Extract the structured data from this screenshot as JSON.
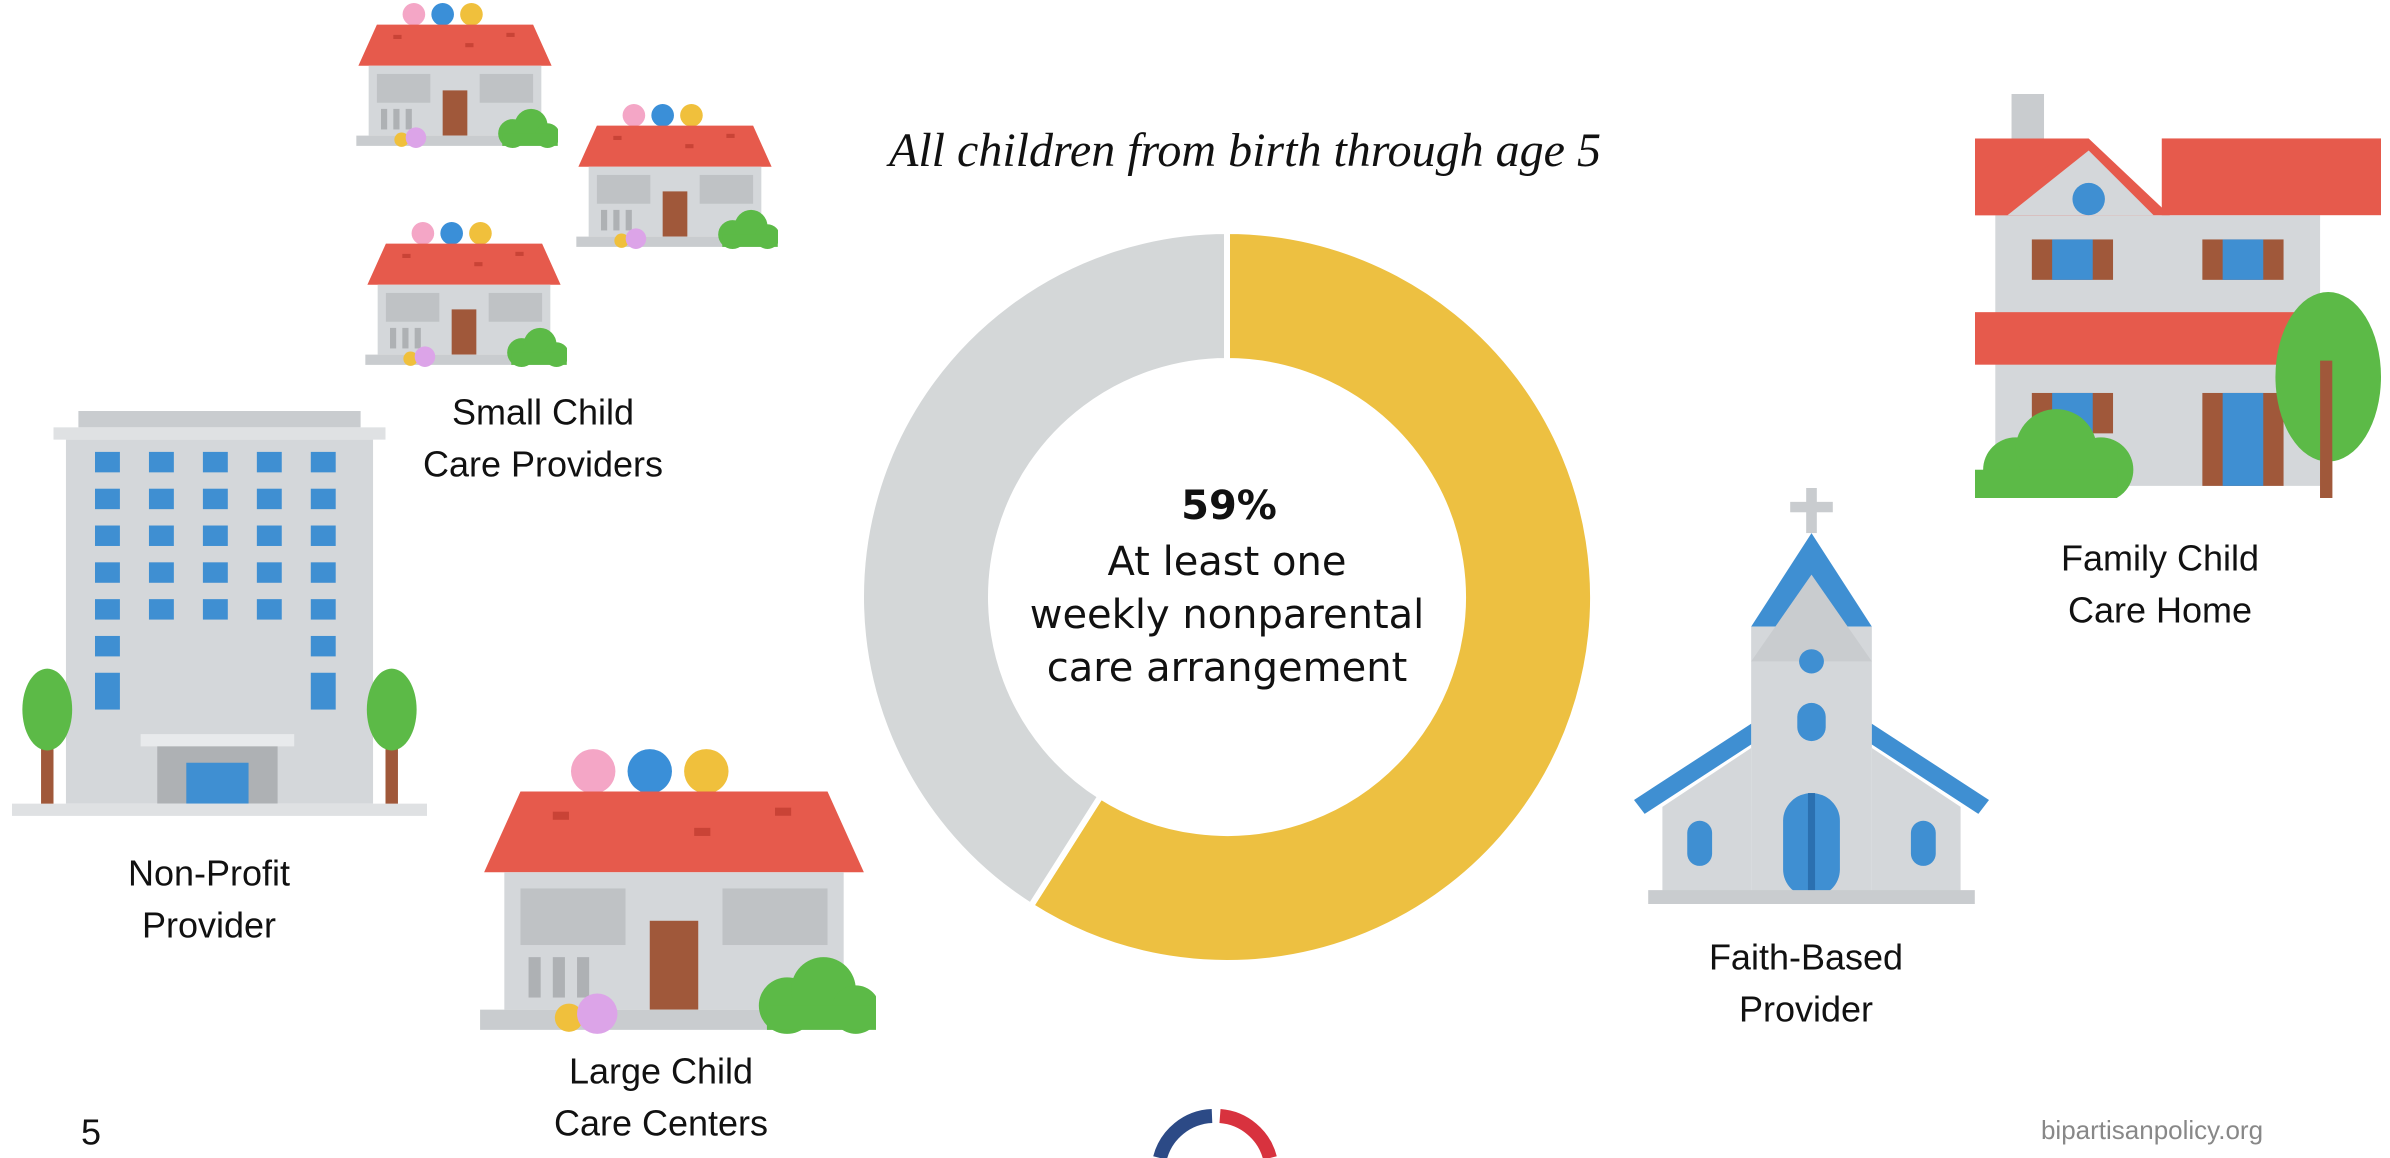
{
  "chart_data": {
    "type": "donut",
    "title": "All children from birth through age 5",
    "values": [
      59,
      41
    ],
    "value_labels": [
      "59%",
      null
    ],
    "colors": [
      "#edc041",
      "#d4d7d8"
    ],
    "annotation": [
      "At least one",
      "weekly nonparental",
      "care arrangement"
    ]
  },
  "providers": [
    {
      "lines": [
        "Small Child",
        "Care Providers"
      ]
    },
    {
      "lines": [
        "Non-Profit",
        "Provider"
      ]
    },
    {
      "lines": [
        "Large Child",
        "Care Centers"
      ]
    },
    {
      "lines": [
        "Faith-Based",
        "Provider"
      ]
    },
    {
      "lines": [
        "Family Child",
        "Care Home"
      ]
    }
  ],
  "footer": {
    "page_number": "5",
    "source": "bipartisanpolicy.org"
  }
}
